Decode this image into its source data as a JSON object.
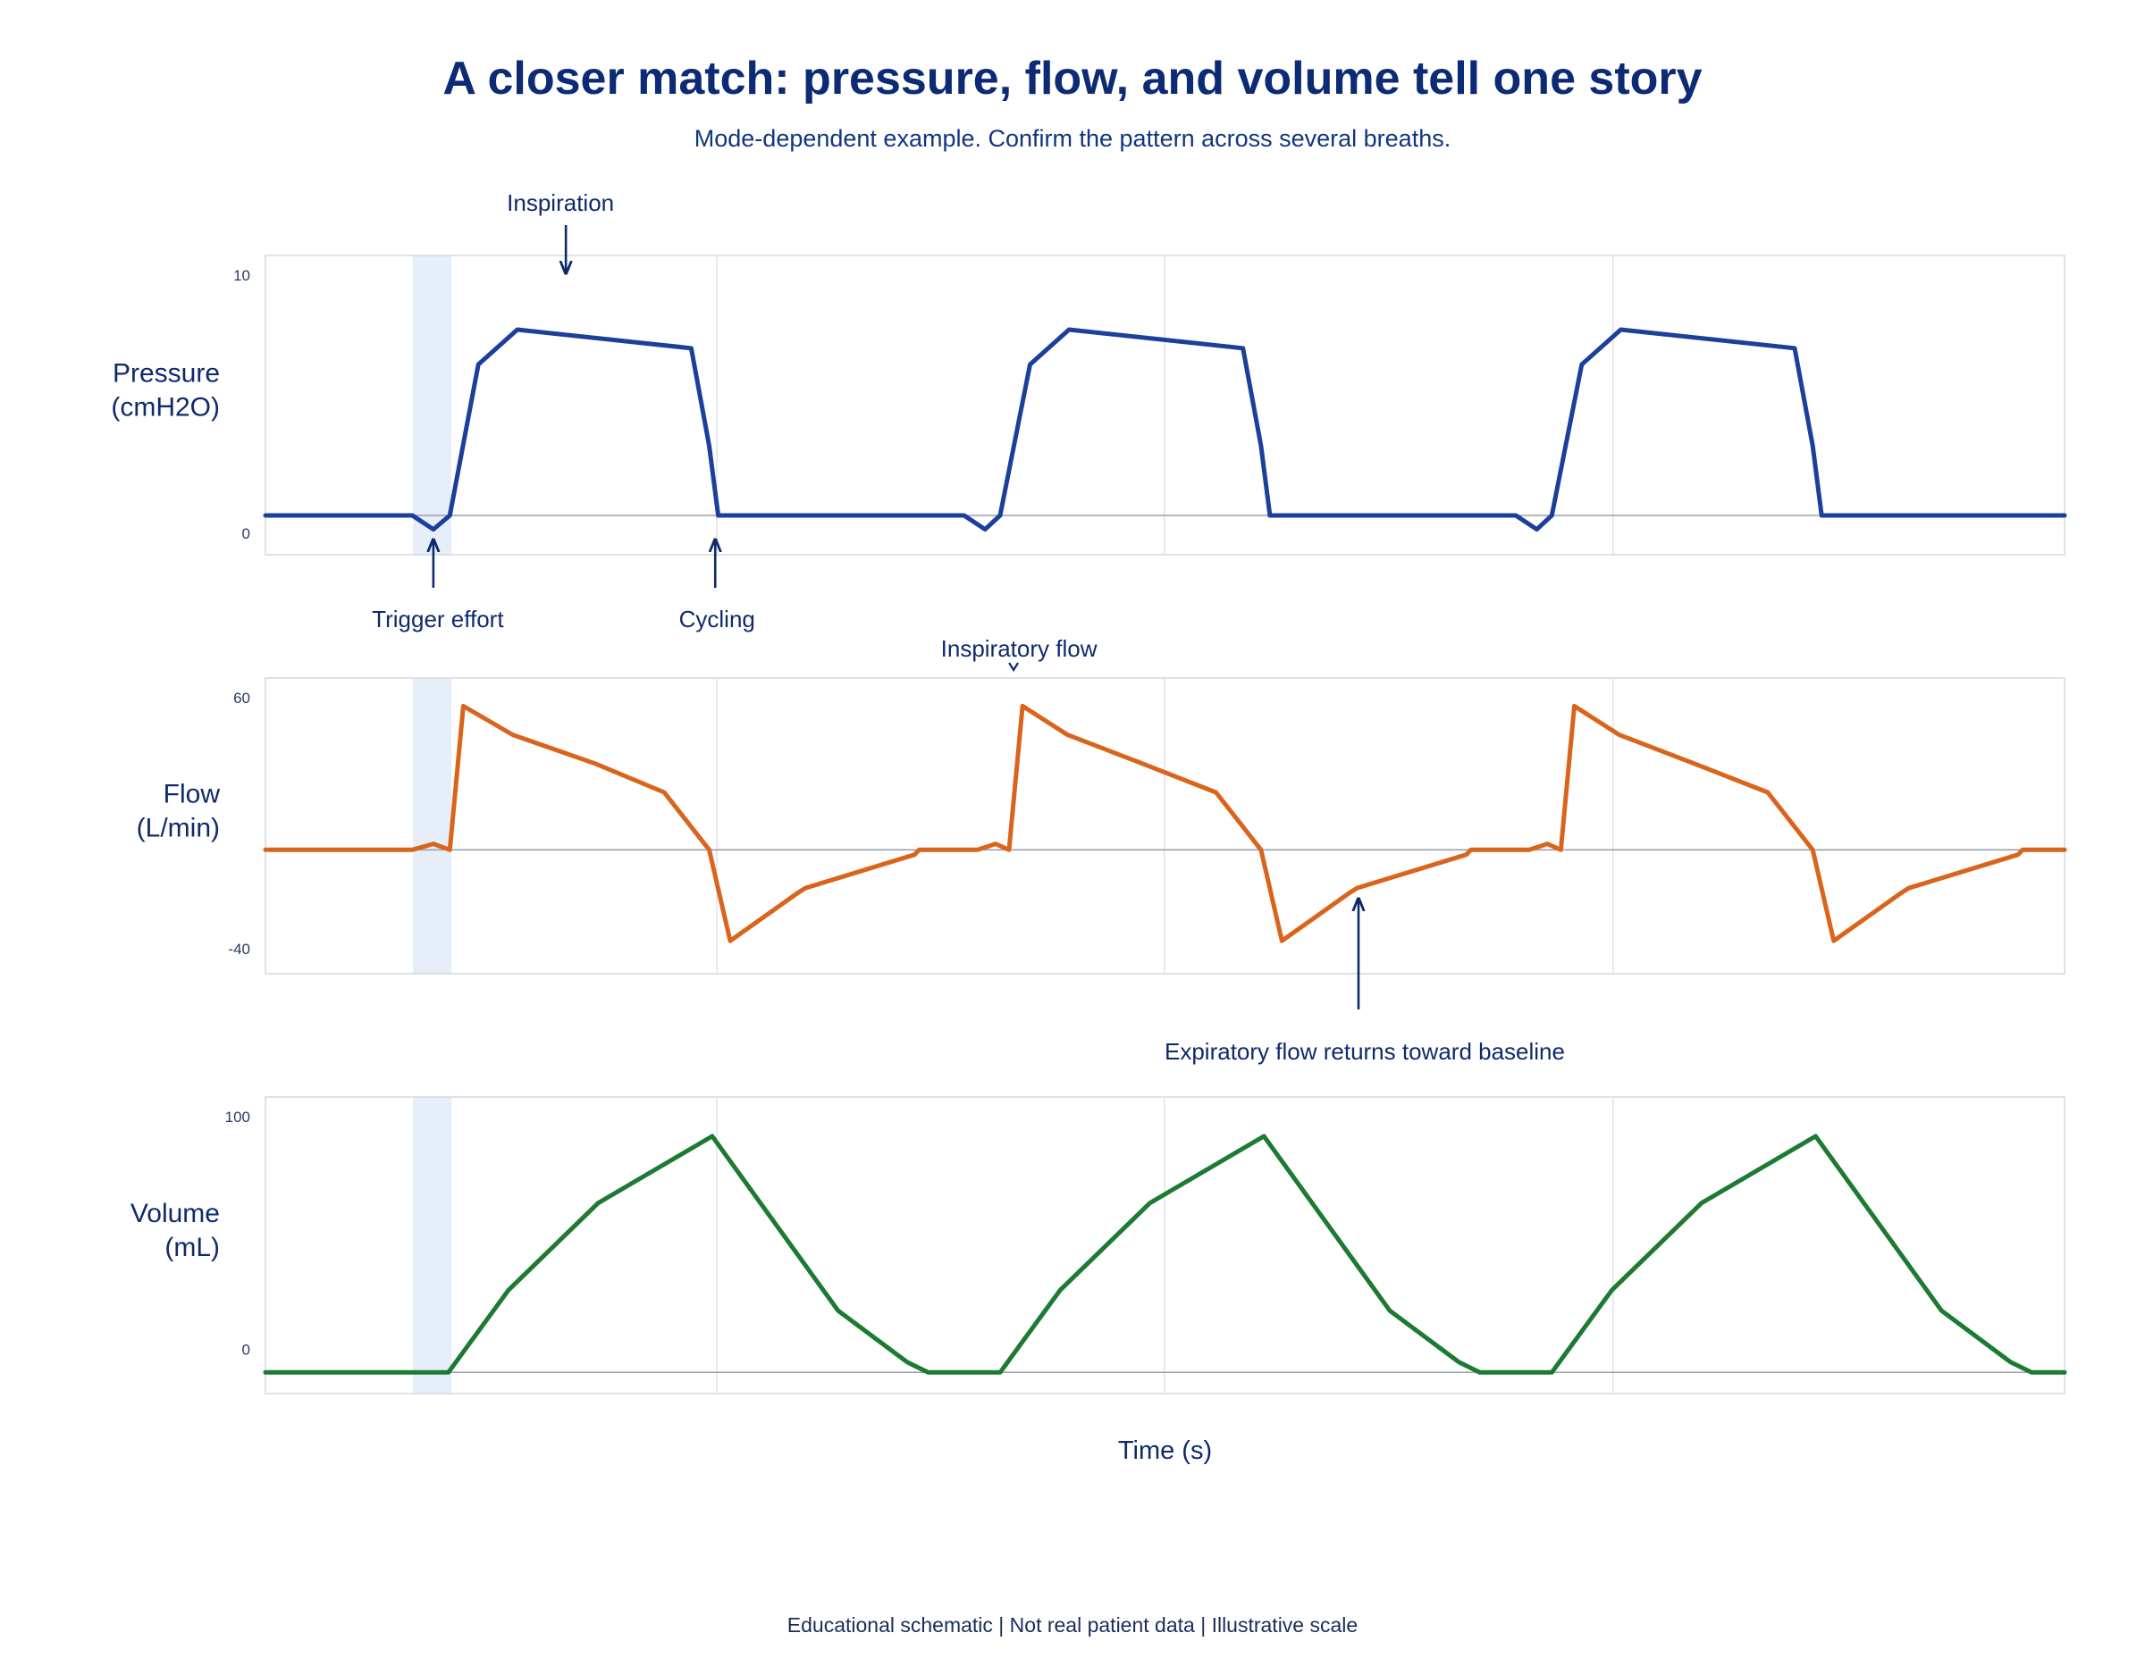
{
  "header": {
    "title": "A closer match: pressure, flow, and volume tell one story",
    "subtitle": "Mode-dependent example. Confirm the pattern across several breaths."
  },
  "footer": {
    "note": "Educational schematic | Not real patient data | Illustrative scale"
  },
  "colors": {
    "pressure": "#1c3f9a",
    "flow": "#d9651c",
    "volume": "#1c7a32",
    "annotation": "#0f2a6b",
    "trigger_band": "#e6eef9"
  },
  "chart_data": [
    {
      "type": "line",
      "panel": "pressure",
      "ylabel": [
        "Pressure",
        "(cmH2O)"
      ],
      "ytick_labels": [
        "0",
        "10"
      ],
      "ylim": [
        -1,
        10.5
      ],
      "xlim": [
        0,
        12
      ],
      "series": [
        {
          "x": [
            0,
            0.98,
            1.12,
            1.23,
            1.42,
            1.68,
            2.84,
            2.96,
            3.02,
            4.66,
            4.8,
            4.9,
            5.1,
            5.36,
            6.52,
            6.64,
            6.7,
            8.34,
            8.48,
            8.58,
            8.78,
            9.04,
            10.2,
            10.32,
            10.38,
            12
          ],
          "y": [
            0,
            0,
            -0.6,
            0,
            6.5,
            8.0,
            7.2,
            3.0,
            0,
            0,
            -0.6,
            0,
            6.5,
            8.0,
            7.2,
            3.0,
            0,
            0,
            -0.6,
            0,
            6.5,
            8.0,
            7.2,
            3.0,
            0,
            0
          ]
        }
      ],
      "annotations": [
        {
          "text": "Inspiration",
          "x": 1.98,
          "direction": "down"
        },
        {
          "text": "Trigger effort",
          "x": 1.12,
          "direction": "up"
        },
        {
          "text": "Cycling",
          "x": 3.0,
          "direction": "up"
        }
      ]
    },
    {
      "type": "line",
      "panel": "flow",
      "ylabel": [
        "Flow",
        "(L/min)"
      ],
      "ytick_labels": [
        "-40",
        "60"
      ],
      "ylim": [
        -45,
        65
      ],
      "xlim": [
        0,
        12
      ],
      "series": [
        {
          "x": [
            0,
            0.98,
            1.12,
            1.23,
            1.32,
            1.65,
            2.2,
            2.66,
            2.96,
            3.1,
            3.55,
            3.6,
            4.33,
            4.36,
            4.75,
            4.87,
            4.96,
            5.05,
            5.35,
            5.85,
            6.34,
            6.64,
            6.78,
            7.23,
            7.28,
            8.01,
            8.04,
            8.43,
            8.55,
            8.64,
            8.73,
            9.03,
            9.53,
            10.02,
            10.32,
            10.46,
            10.91,
            10.96,
            11.69,
            11.72,
            12
          ],
          "y": [
            0,
            0,
            2.5,
            0,
            60,
            48,
            36,
            24,
            0,
            -38,
            -18,
            -16,
            -2,
            0,
            0,
            2.5,
            0,
            60,
            48,
            36,
            24,
            0,
            -38,
            -18,
            -16,
            -2,
            0,
            0,
            2.5,
            0,
            60,
            48,
            36,
            24,
            0,
            -38,
            -18,
            -16,
            -2,
            0,
            0
          ]
        }
      ],
      "annotations": [
        {
          "text": "Inspiratory flow",
          "x": 4.99,
          "direction": "down"
        },
        {
          "text": "Expiratory flow returns toward baseline",
          "x": 7.25,
          "direction": "up"
        }
      ]
    },
    {
      "type": "line",
      "panel": "volume",
      "ylabel": [
        "Volume",
        "(mL)"
      ],
      "ytick_labels": [
        "0",
        "100"
      ],
      "ylim": [
        -2,
        101
      ],
      "xlim": [
        0,
        12
      ],
      "xlabel": "Time (s)",
      "series": [
        {
          "x": [
            0,
            1.22,
            1.62,
            2.22,
            2.98,
            3.82,
            4.28,
            4.42,
            4.9,
            5.3,
            5.9,
            6.66,
            7.5,
            7.96,
            8.1,
            8.58,
            8.98,
            9.58,
            10.34,
            11.18,
            11.64,
            11.78,
            12
          ],
          "y": [
            0,
            0,
            32,
            66,
            92,
            24,
            4,
            0,
            0,
            32,
            66,
            92,
            24,
            4,
            0,
            0,
            32,
            66,
            92,
            24,
            4,
            0,
            0
          ]
        }
      ]
    }
  ]
}
